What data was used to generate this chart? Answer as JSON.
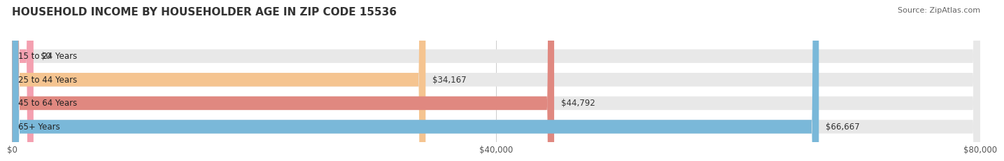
{
  "title": "HOUSEHOLD INCOME BY HOUSEHOLDER AGE IN ZIP CODE 15536",
  "source": "Source: ZipAtlas.com",
  "categories": [
    "15 to 24 Years",
    "25 to 44 Years",
    "45 to 64 Years",
    "65+ Years"
  ],
  "values": [
    0,
    34167,
    44792,
    66667
  ],
  "labels": [
    "$0",
    "$34,167",
    "$44,792",
    "$66,667"
  ],
  "bar_colors": [
    "#f4a0b0",
    "#f5c490",
    "#e08880",
    "#7ab8d9"
  ],
  "bar_bg_color": "#e8e8e8",
  "xlim": [
    0,
    80000
  ],
  "xticks": [
    0,
    40000,
    80000
  ],
  "xtick_labels": [
    "$0",
    "$40,000",
    "$80,000"
  ],
  "fig_bg": "#ffffff",
  "title_fontsize": 11,
  "source_fontsize": 8,
  "label_fontsize": 8.5,
  "bar_height": 0.58,
  "rounding_size": 600
}
